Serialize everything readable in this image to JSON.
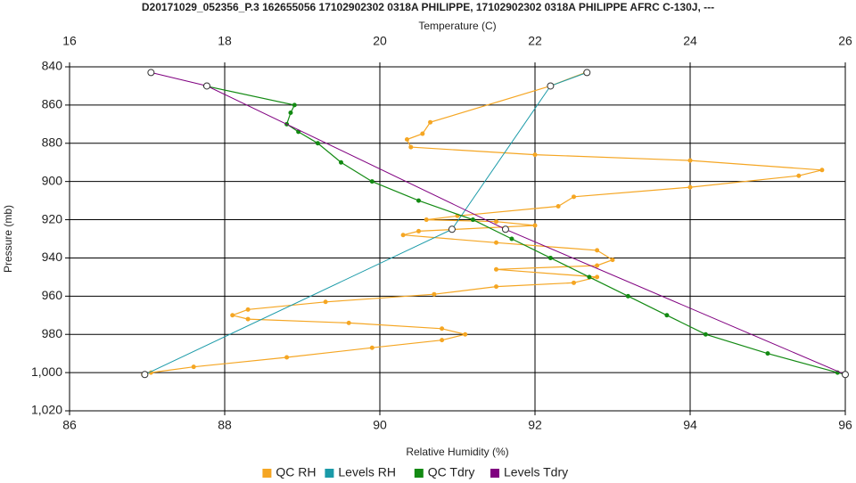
{
  "chart_data": {
    "type": "line",
    "title": "D20171029_052356_P.3 162655056 17102902302 0318A PHILIPPE, 17102902302 0318A PHILIPPE AFRC C-130J, ---",
    "xlabel": "Relative Humidity (%)",
    "x2label": "Temperature (C)",
    "ylabel": "Pressure (mb)",
    "xlim": [
      86,
      96
    ],
    "xticks": [
      86,
      88,
      90,
      92,
      94,
      96
    ],
    "x2lim": [
      16,
      26
    ],
    "x2ticks": [
      16,
      18,
      20,
      22,
      24,
      26
    ],
    "ylim": [
      840,
      1020
    ],
    "y_inverted": true,
    "yticks": [
      840,
      860,
      880,
      900,
      920,
      940,
      960,
      980,
      {
        "value": 1000,
        "label": "1,000"
      },
      {
        "value": 1020,
        "label": "1,020"
      }
    ],
    "grid": true,
    "legend": "bottom",
    "series": [
      {
        "name": "QC RH",
        "color": "#f5a623",
        "axis": "x",
        "x": [
          92.65,
          92.2,
          90.65,
          90.55,
          90.35,
          90.4,
          92,
          94,
          95.7,
          95.4,
          94,
          92.5,
          92.3,
          91,
          90.6,
          91.5,
          92,
          90.5,
          90.3,
          91.5,
          92.8,
          93.0,
          92.8,
          91.5,
          92.8,
          92.5,
          91.5,
          90.7,
          89.3,
          88.3,
          88.1,
          88.3,
          89.6,
          90.8,
          91.1,
          90.8,
          89.9,
          88.8,
          87.6,
          87.05,
          86.95
        ],
        "y": [
          843,
          850,
          869,
          875,
          878,
          882,
          886,
          889,
          894,
          897,
          903,
          908,
          913,
          918,
          920,
          921,
          923,
          926,
          928,
          932,
          936,
          941,
          944,
          946,
          950,
          953,
          955,
          959,
          963,
          967,
          970,
          972,
          974,
          977,
          980,
          983,
          987,
          992,
          997,
          1000,
          1001
        ]
      },
      {
        "name": "Levels RH",
        "color": "#1a9aa8",
        "axis": "x",
        "x": [
          92.67,
          92.2,
          90.93,
          86.97
        ],
        "y": [
          843,
          850,
          925,
          1001
        ]
      },
      {
        "name": "QC Tdry",
        "color": "#138a13",
        "axis": "x2",
        "x": [
          17.75,
          18.9,
          18.85,
          18.8,
          18.95,
          19.2,
          19.5,
          19.9,
          20.5,
          21.2,
          21.7,
          22.2,
          22.7,
          23.2,
          23.7,
          24.2,
          25.0,
          25.9,
          26.0
        ],
        "y": [
          850,
          860,
          864,
          870,
          874,
          880,
          890,
          900,
          910,
          920,
          930,
          940,
          950,
          960,
          970,
          980,
          990,
          1000,
          1001
        ]
      },
      {
        "name": "Levels Tdry",
        "color": "#800080",
        "axis": "x2",
        "x": [
          17.05,
          17.77,
          21.62,
          26.0
        ],
        "y": [
          843,
          850,
          925,
          1001
        ]
      }
    ]
  }
}
